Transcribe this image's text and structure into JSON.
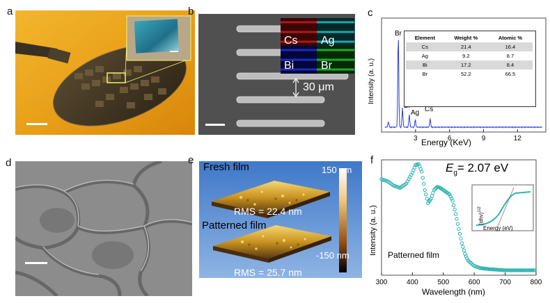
{
  "panels": {
    "a": {
      "letter": "a"
    },
    "b": {
      "letter": "b",
      "elements": [
        "Cs",
        "Ag",
        "Bi",
        "Br"
      ],
      "spacing_label": "30 μm"
    },
    "c": {
      "letter": "c",
      "ylabel": "Intensity (a. u.)",
      "xlabel": "Energy (KeV)",
      "xticks": [
        "3",
        "6",
        "9",
        "12"
      ],
      "peak_labels": [
        "Br",
        "Bi",
        "Ag",
        "Cs"
      ],
      "table": {
        "headers": [
          "Element",
          "Weight %",
          "Atomic %"
        ],
        "rows": [
          [
            "Cs",
            "21.4",
            "16.4"
          ],
          [
            "Ag",
            "9.2",
            "8.7"
          ],
          [
            "Bi",
            "17.2",
            "8.4"
          ],
          [
            "Br",
            "52.2",
            "66.5"
          ]
        ]
      }
    },
    "d": {
      "letter": "d"
    },
    "e": {
      "letter": "e",
      "label_fresh": "Fresh film",
      "label_patterned": "Patterned film",
      "rms_fresh": "RMS = 22.4 nm",
      "rms_patterned": "RMS = 25.7 nm",
      "scale_top": "150 nm",
      "scale_bottom": "-150 nm"
    },
    "f": {
      "letter": "f",
      "eg_symbol": "E",
      "eg_sub": "g",
      "eg_value": "= 2.07 eV",
      "ylabel": "Intensity (a. u.)",
      "xlabel": "Wavelength (nm)",
      "legend": "Patterned film",
      "inset_ylabel": "(αhν)",
      "inset_ysup": "1/2",
      "inset_xlabel": "Energy (eV)"
    }
  },
  "chart_data": [
    {
      "type": "bar",
      "panel": "c",
      "title": "",
      "xlabel": "Energy (KeV)",
      "ylabel": "Intensity (a. u.)",
      "categories": [
        "Cs",
        "Ag",
        "Bi",
        "Br"
      ],
      "series": [
        {
          "name": "Weight %",
          "values": [
            21.4,
            9.2,
            17.2,
            52.2
          ]
        },
        {
          "name": "Atomic %",
          "values": [
            16.4,
            8.7,
            8.4,
            66.5
          ]
        }
      ]
    },
    {
      "type": "line",
      "panel": "f",
      "xlabel": "Wavelength (nm)",
      "ylabel": "Intensity (a. u.)",
      "xlim": [
        300,
        800
      ],
      "x": [
        300,
        320,
        340,
        360,
        380,
        400,
        410,
        420,
        430,
        440,
        450,
        460,
        470,
        480,
        490,
        500,
        510,
        520,
        530,
        540,
        550,
        560,
        570,
        580,
        600,
        620,
        650,
        700,
        750,
        800
      ],
      "series": [
        {
          "name": "Patterned film",
          "values": [
            0.86,
            0.84,
            0.8,
            0.78,
            0.82,
            0.92,
            0.99,
            1.0,
            0.93,
            0.76,
            0.64,
            0.68,
            0.76,
            0.79,
            0.78,
            0.76,
            0.74,
            0.72,
            0.66,
            0.54,
            0.4,
            0.27,
            0.17,
            0.11,
            0.06,
            0.04,
            0.03,
            0.02,
            0.02,
            0.02
          ]
        }
      ]
    }
  ]
}
